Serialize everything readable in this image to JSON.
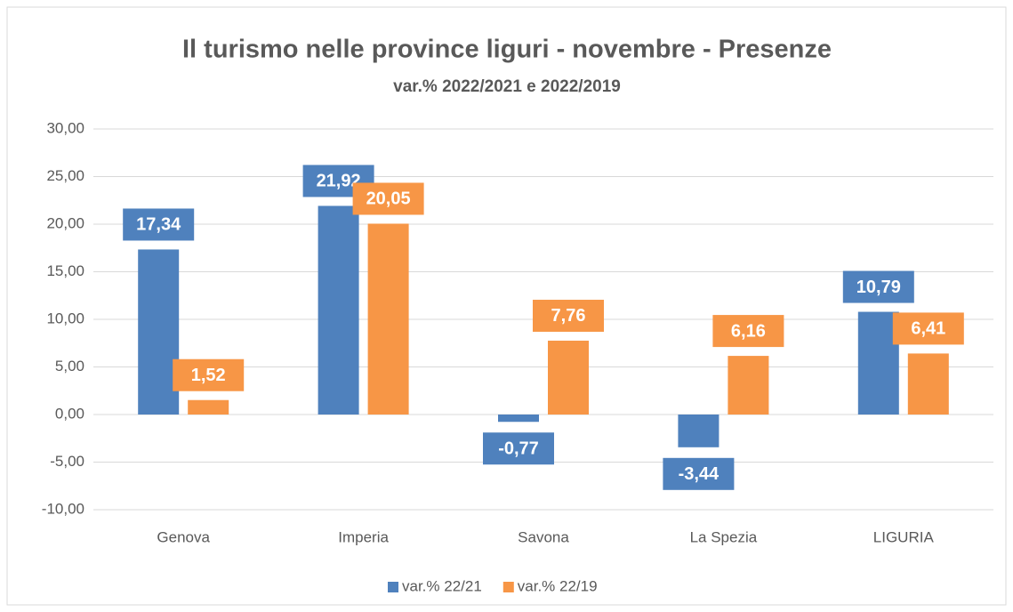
{
  "chart_data": {
    "type": "bar",
    "title": "Il turismo nelle province liguri - novembre - Presenze",
    "subtitle": "var.% 2022/2021 e 2022/2019",
    "categories": [
      "Genova",
      "Imperia",
      "Savona",
      "La Spezia",
      "LIGURIA"
    ],
    "series": [
      {
        "name": "var.% 22/21",
        "color": "#4f81bd",
        "values": [
          17.34,
          21.92,
          -0.77,
          -3.44,
          10.79
        ],
        "value_labels": [
          "17,34",
          "21,92",
          "-0,77",
          "-3,44",
          "10,79"
        ]
      },
      {
        "name": "var.% 22/19",
        "color": "#f79646",
        "values": [
          1.52,
          20.05,
          7.76,
          6.16,
          6.41
        ],
        "value_labels": [
          "1,52",
          "20,05",
          "7,76",
          "6,16",
          "6,41"
        ]
      }
    ],
    "ylim": [
      -10,
      30
    ],
    "yticks": [
      {
        "value": -10,
        "label": "-10,00"
      },
      {
        "value": -5,
        "label": "-5,00"
      },
      {
        "value": 0,
        "label": "0,00"
      },
      {
        "value": 5,
        "label": "5,00"
      },
      {
        "value": 10,
        "label": "10,00"
      },
      {
        "value": 15,
        "label": "15,00"
      },
      {
        "value": 20,
        "label": "20,00"
      },
      {
        "value": 25,
        "label": "25,00"
      },
      {
        "value": 30,
        "label": "30,00"
      }
    ],
    "grid": true,
    "legend": "bottom"
  }
}
